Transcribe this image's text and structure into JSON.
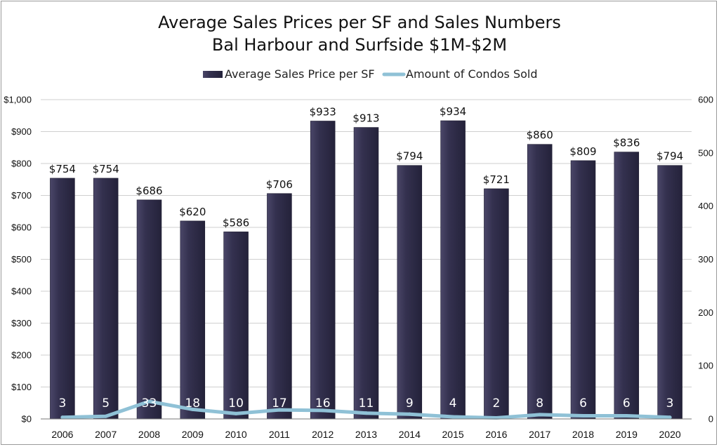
{
  "chart_data": {
    "type": "bar",
    "title": "Average Sales Prices per SF and Sales Numbers",
    "subtitle": "Bal Harbour and Surfside $1M-$2M",
    "categories": [
      "2006",
      "2007",
      "2008",
      "2009",
      "2010",
      "2011",
      "2012",
      "2013",
      "2014",
      "2015",
      "2016",
      "2017",
      "2018",
      "2019",
      "2020"
    ],
    "series": [
      {
        "name": "Average Sales Price per SF",
        "type": "bar",
        "axis": "left",
        "color": "#34314f",
        "values": [
          754,
          754,
          686,
          620,
          586,
          706,
          933,
          913,
          794,
          934,
          721,
          860,
          809,
          836,
          794
        ],
        "labels": [
          "$754",
          "$754",
          "$686",
          "$620",
          "$586",
          "$706",
          "$933",
          "$913",
          "$794",
          "$934",
          "$721",
          "$860",
          "$809",
          "$836",
          "$794"
        ]
      },
      {
        "name": "Amount of Condos Sold",
        "type": "line",
        "axis": "right",
        "color": "#8fc1d6",
        "values": [
          3,
          5,
          33,
          18,
          10,
          17,
          16,
          11,
          9,
          4,
          2,
          8,
          6,
          6,
          3
        ],
        "labels": [
          "3",
          "5",
          "33",
          "18",
          "10",
          "17",
          "16",
          "11",
          "9",
          "4",
          "2",
          "8",
          "6",
          "6",
          "3"
        ]
      }
    ],
    "y_left": {
      "ylim": [
        0,
        1000
      ],
      "ticks": [
        "$0",
        "$100",
        "$200",
        "$300",
        "$400",
        "$500",
        "$600",
        "$700",
        "$800",
        "$900",
        "$1,000"
      ]
    },
    "y_right": {
      "ylim": [
        0,
        600
      ],
      "ticks": [
        "0",
        "100",
        "200",
        "300",
        "400",
        "500",
        "600"
      ]
    },
    "grid": true,
    "legend_position": "top"
  }
}
